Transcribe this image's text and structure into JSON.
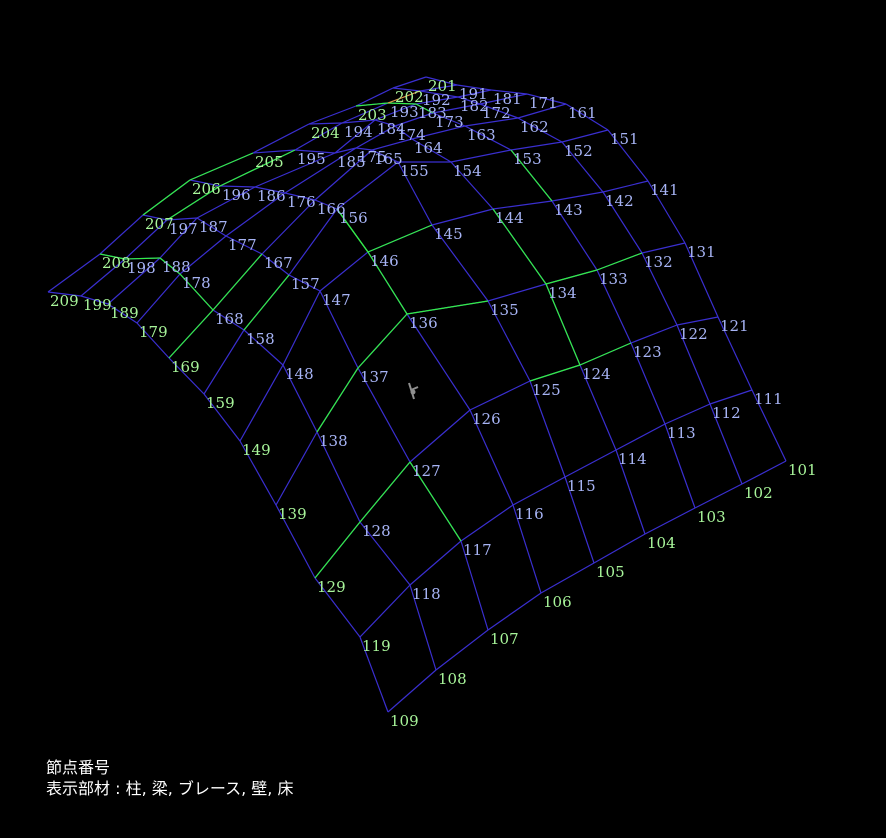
{
  "caption": {
    "line1": "節点番号",
    "line2": "表示部材 : 柱,  梁,  ブレース,  壁,  床"
  },
  "colors": {
    "background": "#000000",
    "grid_line": "#3a2fd0",
    "highlight_line": "#33ee44",
    "edge_label": "#a8f59a",
    "interior_label": "#a7b4f5",
    "axis_marker": "#8f8f8f"
  },
  "mesh": {
    "rows": [
      {
        "label": "101-109",
        "nodes": [
          "101",
          "102",
          "103",
          "104",
          "105",
          "106",
          "107",
          "108",
          "109"
        ]
      },
      {
        "label": "111-119",
        "nodes": [
          "111",
          "112",
          "113",
          "114",
          "115",
          "116",
          "117",
          "118",
          "119"
        ]
      },
      {
        "label": "121-129",
        "nodes": [
          "121",
          "122",
          "123",
          "124",
          "125",
          "126",
          "127",
          "128",
          "129"
        ]
      },
      {
        "label": "131-139",
        "nodes": [
          "131",
          "132",
          "133",
          "134",
          "135",
          "136",
          "137",
          "138",
          "139"
        ]
      },
      {
        "label": "141-149",
        "nodes": [
          "141",
          "142",
          "143",
          "144",
          "145",
          "146",
          "147",
          "148",
          "149"
        ]
      },
      {
        "label": "151-159",
        "nodes": [
          "151",
          "152",
          "153",
          "154",
          "155",
          "156",
          "157",
          "158",
          "159"
        ]
      },
      {
        "label": "161-169",
        "nodes": [
          "161",
          "162",
          "163",
          "164",
          "165",
          "166",
          "167",
          "168",
          "169"
        ]
      },
      {
        "label": "171-179",
        "nodes": [
          "171",
          "172",
          "173",
          "174",
          "175",
          "176",
          "177",
          "178",
          "179"
        ]
      },
      {
        "label": "181-189",
        "nodes": [
          "181",
          "182",
          "183",
          "184",
          "185",
          "186",
          "187",
          "188",
          "189"
        ]
      },
      {
        "label": "191-199",
        "nodes": [
          "191",
          "192",
          "193",
          "194",
          "195",
          "196",
          "197",
          "198",
          "199"
        ]
      },
      {
        "label": "201-209",
        "nodes": [
          "201",
          "202",
          "203",
          "204",
          "205",
          "206",
          "207",
          "208",
          "209"
        ]
      }
    ]
  }
}
